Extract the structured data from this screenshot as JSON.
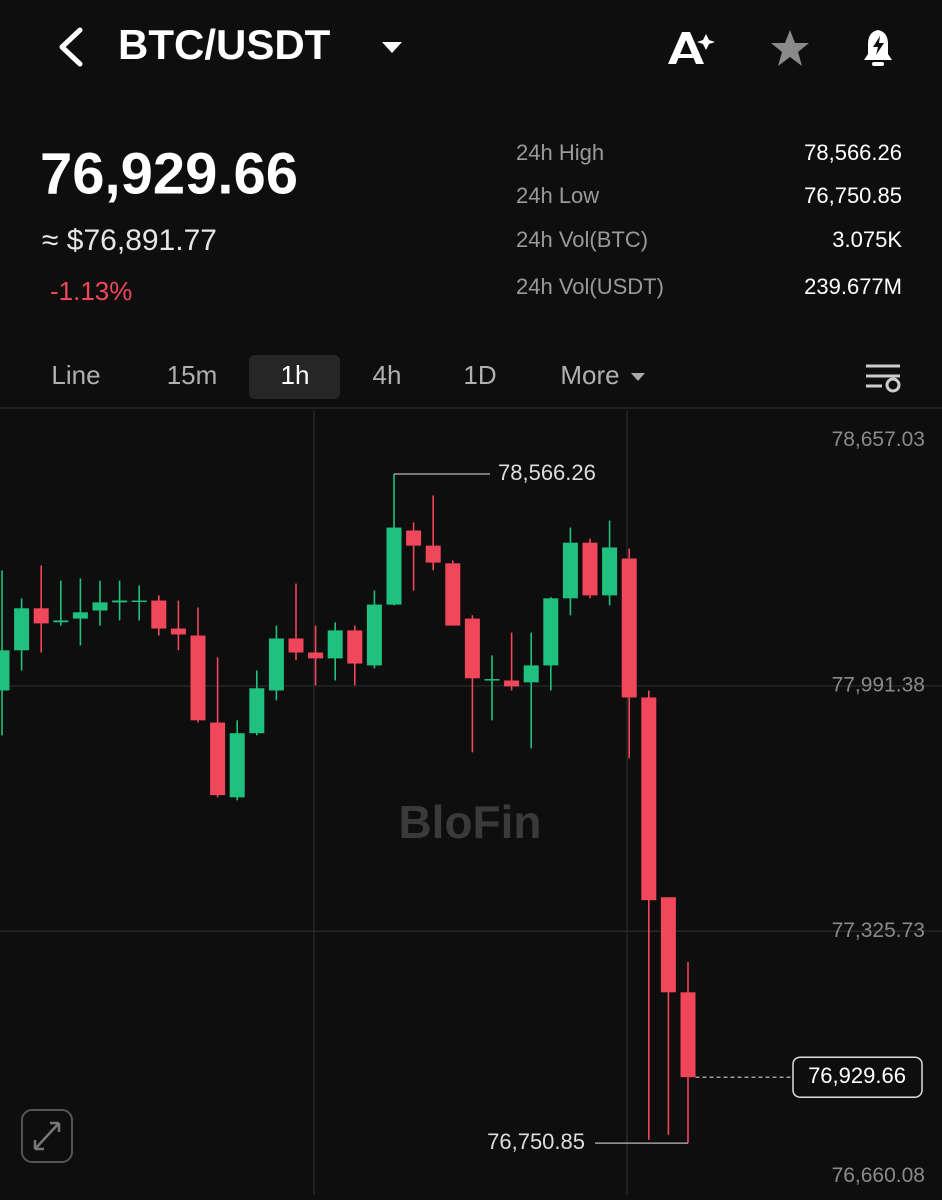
{
  "header": {
    "pair": "BTC/USDT"
  },
  "price": {
    "last": "76,929.66",
    "usd": "≈ $76,891.77",
    "change": "-1.13%"
  },
  "stats": [
    {
      "label": "24h High",
      "value": "78,566.26"
    },
    {
      "label": "24h Low",
      "value": "76,750.85"
    },
    {
      "label": "24h Vol(BTC)",
      "value": "3.075K"
    },
    {
      "label": "24h Vol(USDT)",
      "value": "239.677M"
    }
  ],
  "tabs": [
    "Line",
    "15m",
    "1h",
    "4h",
    "1D",
    "More"
  ],
  "chart_data": {
    "type": "candlestick",
    "watermark": "BloFin",
    "up_color": "#20c17f",
    "down_color": "#f0475a",
    "open": [
      77979,
      78088,
      78202,
      78164,
      78174,
      78196,
      78218,
      78223,
      78223,
      78147,
      78128,
      77892,
      77689,
      77863,
      77979,
      78120,
      78082,
      78066,
      78142,
      78047,
      78212,
      78413,
      78372,
      78324,
      78174,
      78006,
      78006,
      78001,
      78047,
      78229,
      78380,
      78237,
      78337,
      77960,
      77418,
      77160
    ],
    "high": [
      78305,
      78229,
      78318,
      78277,
      78283,
      78277,
      78277,
      78264,
      78237,
      78223,
      78204,
      78069,
      77898,
      78033,
      78155,
      78269,
      78155,
      78164,
      78155,
      78250,
      78566.26,
      78435,
      78508,
      78332,
      78183,
      78074,
      78136,
      78136,
      78232,
      78421,
      78391,
      78440,
      78364,
      77979,
      77418,
      77242
    ],
    "low": [
      77857,
      78033,
      78082,
      78155,
      78101,
      78155,
      78169,
      78169,
      78128,
      78088,
      77892,
      77689,
      77681,
      77857,
      77952,
      78061,
      77993,
      78006,
      77993,
      78039,
      78210,
      78250,
      78305,
      78155,
      77811,
      77898,
      77979,
      77822,
      77979,
      78183,
      78229,
      78210,
      77795,
      76760,
      76773,
      76750.85
    ],
    "close": [
      78088,
      78202,
      78161,
      78169,
      78191,
      78218,
      78223,
      78223,
      78147,
      78131,
      77898,
      77695,
      77863,
      77985,
      78120,
      78082,
      78066,
      78142,
      78052,
      78212,
      78421,
      78372,
      78326,
      78155,
      78012,
      78010,
      77990,
      78047,
      78229,
      78380,
      78237,
      78367,
      77960,
      77410,
      77160,
      76929.66
    ],
    "ylim": [
      76610,
      78740
    ],
    "yticks": [
      {
        "value": 78657.03,
        "label": "78,657.03"
      },
      {
        "value": 77991.38,
        "label": "77,991.38"
      },
      {
        "value": 77325.73,
        "label": "77,325.73"
      },
      {
        "value": 76660.08,
        "label": "76,660.08"
      }
    ],
    "grid": true,
    "annotations": {
      "high": {
        "value": 78566.26,
        "label": "78,566.26"
      },
      "low": {
        "value": 76750.85,
        "label": "76,750.85"
      },
      "last": {
        "value": 76929.66,
        "label": "76,929.66"
      }
    }
  }
}
